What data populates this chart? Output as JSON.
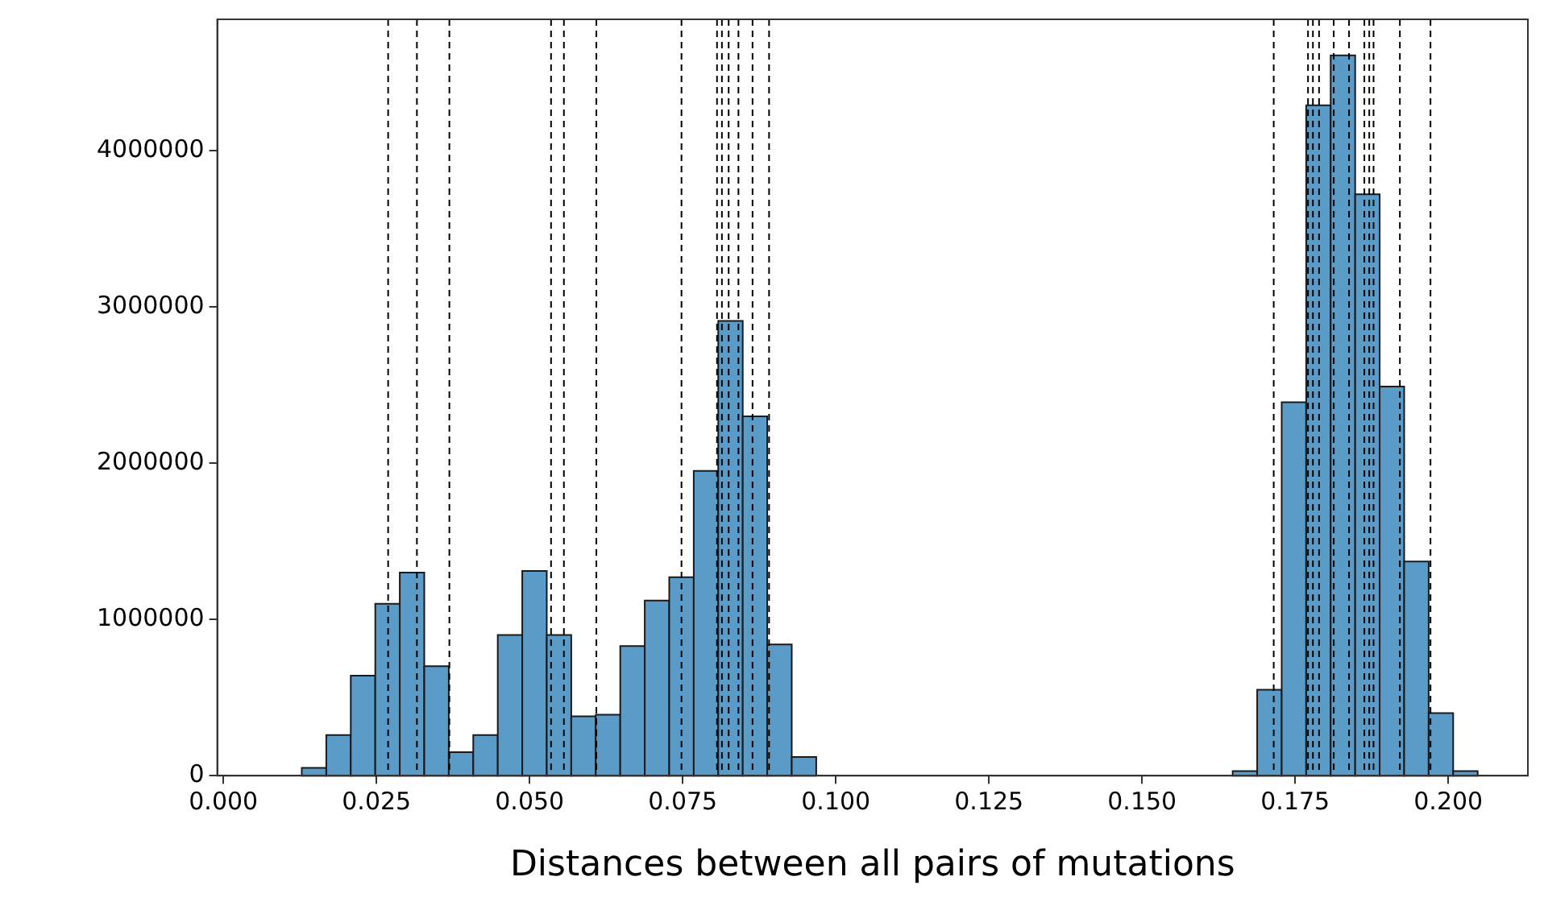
{
  "chart_data": {
    "type": "histogram",
    "xlabel": "Distances between all pairs of mutations",
    "bins": [
      0.0128,
      0.0168,
      0.0208,
      0.0248,
      0.0288,
      0.0328,
      0.0368,
      0.0408,
      0.0448,
      0.0488,
      0.0528,
      0.0568,
      0.0608,
      0.0648,
      0.0688,
      0.0728,
      0.0768,
      0.0808,
      0.0848,
      0.0888,
      0.0928,
      0.0968,
      0.1008,
      0.1048,
      0.1088,
      0.1128,
      0.1168,
      0.1208,
      0.1248,
      0.1288,
      0.1328,
      0.1368,
      0.1408,
      0.1448,
      0.1488,
      0.1528,
      0.1568,
      0.1608,
      0.1648,
      0.1688,
      0.1728,
      0.1768,
      0.1808,
      0.1848,
      0.1888,
      0.1928,
      0.1968,
      0.2008,
      0.2048
    ],
    "values": [
      50000,
      260000,
      640000,
      1100000,
      1300000,
      700000,
      150000,
      260000,
      900000,
      1310000,
      900000,
      380000,
      390000,
      830000,
      1120000,
      1270000,
      1950000,
      2910000,
      2300000,
      840000,
      120000,
      0,
      0,
      0,
      0,
      0,
      0,
      0,
      0,
      0,
      0,
      0,
      0,
      0,
      0,
      0,
      0,
      0,
      30000,
      550000,
      2390000,
      4290000,
      4610000,
      3720000,
      2490000,
      1370000,
      400000,
      30000
    ],
    "color": "#5b9bc8",
    "xlim": [
      -0.001,
      0.213
    ],
    "ylim": [
      0,
      4840000
    ],
    "xticks": [
      {
        "value": 0,
        "label": "0.000"
      },
      {
        "value": 0.025,
        "label": "0.025"
      },
      {
        "value": 0.05,
        "label": "0.050"
      },
      {
        "value": 0.075,
        "label": "0.075"
      },
      {
        "value": 0.1,
        "label": "0.100"
      },
      {
        "value": 0.125,
        "label": "0.125"
      },
      {
        "value": 0.15,
        "label": "0.150"
      },
      {
        "value": 0.175,
        "label": "0.175"
      },
      {
        "value": 0.2,
        "label": "0.200"
      }
    ],
    "yticks": [
      0,
      1000000,
      2000000,
      3000000,
      4000000
    ],
    "grid": false,
    "legend": false,
    "ref_lines": [
      {
        "axis": "x",
        "value": 0.0269,
        "color": "#000000",
        "line_style": "dashed"
      },
      {
        "axis": "x",
        "value": 0.0316,
        "color": "#000000",
        "line_style": "dashed"
      },
      {
        "axis": "x",
        "value": 0.0369,
        "color": "#000000",
        "line_style": "dashed"
      },
      {
        "axis": "x",
        "value": 0.0535,
        "color": "#000000",
        "line_style": "dashed"
      },
      {
        "axis": "x",
        "value": 0.0556,
        "color": "#000000",
        "line_style": "dashed"
      },
      {
        "axis": "x",
        "value": 0.0609,
        "color": "#000000",
        "line_style": "dashed"
      },
      {
        "axis": "x",
        "value": 0.0748,
        "color": "#000000",
        "line_style": "dashed"
      },
      {
        "axis": "x",
        "value": 0.0806,
        "color": "#000000",
        "line_style": "dashed"
      },
      {
        "axis": "x",
        "value": 0.0814,
        "color": "#000000",
        "line_style": "dashed"
      },
      {
        "axis": "x",
        "value": 0.0825,
        "color": "#000000",
        "line_style": "dashed"
      },
      {
        "axis": "x",
        "value": 0.0841,
        "color": "#000000",
        "line_style": "dashed"
      },
      {
        "axis": "x",
        "value": 0.0864,
        "color": "#000000",
        "line_style": "dashed"
      },
      {
        "axis": "x",
        "value": 0.0891,
        "color": "#000000",
        "line_style": "dashed"
      },
      {
        "axis": "x",
        "value": 0.1715,
        "color": "#000000",
        "line_style": "dashed"
      },
      {
        "axis": "x",
        "value": 0.1771,
        "color": "#000000",
        "line_style": "dashed"
      },
      {
        "axis": "x",
        "value": 0.1779,
        "color": "#000000",
        "line_style": "dashed"
      },
      {
        "axis": "x",
        "value": 0.1789,
        "color": "#000000",
        "line_style": "dashed"
      },
      {
        "axis": "x",
        "value": 0.1813,
        "color": "#000000",
        "line_style": "dashed"
      },
      {
        "axis": "x",
        "value": 0.1838,
        "color": "#000000",
        "line_style": "dashed"
      },
      {
        "axis": "x",
        "value": 0.1863,
        "color": "#000000",
        "line_style": "dashed"
      },
      {
        "axis": "x",
        "value": 0.1871,
        "color": "#000000",
        "line_style": "dashed"
      },
      {
        "axis": "x",
        "value": 0.1878,
        "color": "#000000",
        "line_style": "dashed"
      },
      {
        "axis": "x",
        "value": 0.1921,
        "color": "#000000",
        "line_style": "dashed"
      },
      {
        "axis": "x",
        "value": 0.1971,
        "color": "#000000",
        "line_style": "dashed"
      }
    ]
  }
}
